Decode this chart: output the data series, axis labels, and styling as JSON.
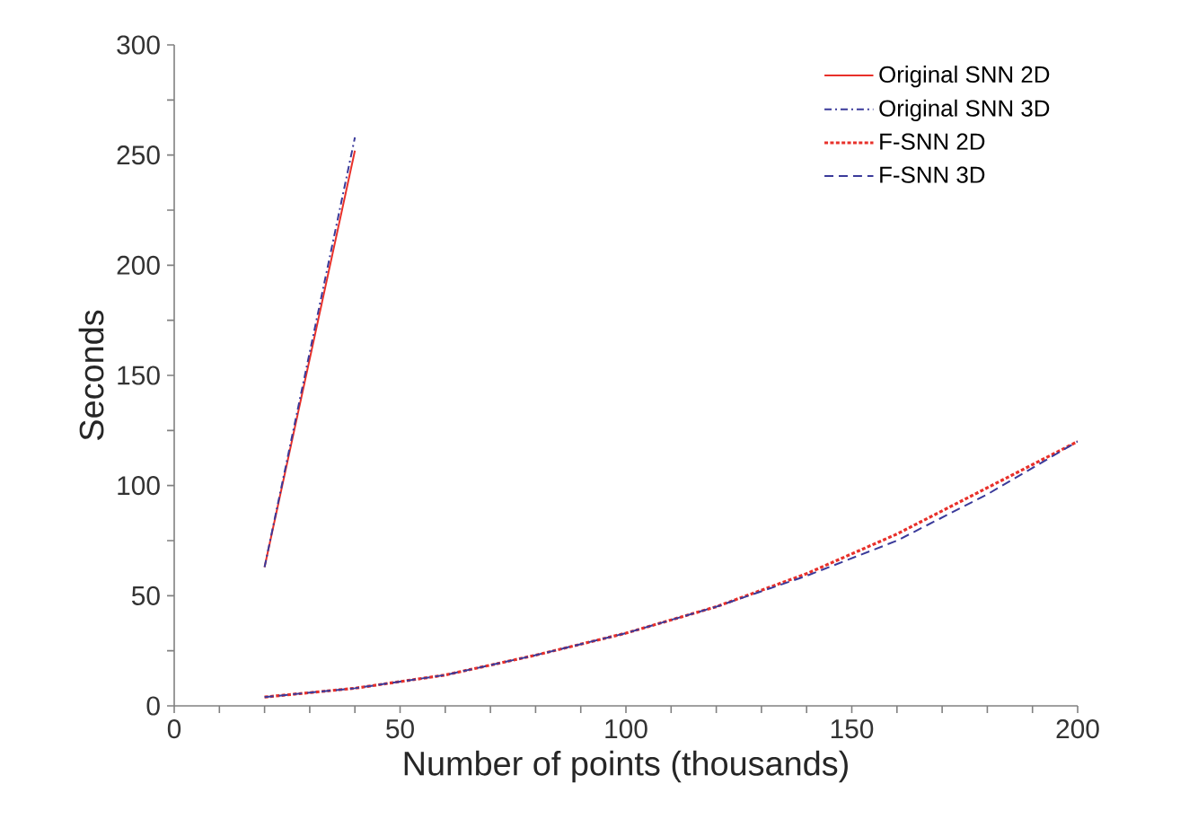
{
  "chart_data": {
    "type": "line",
    "xlabel": "Number of points (thousands)",
    "ylabel": "Seconds",
    "xlim": [
      0,
      200
    ],
    "ylim": [
      0,
      300
    ],
    "xticks": [
      0,
      {
        "value": 10,
        "label": null
      },
      {
        "value": 20,
        "label": null
      },
      {
        "value": 30,
        "label": null
      },
      {
        "value": 40,
        "label": null
      },
      50,
      {
        "value": 60,
        "label": null
      },
      {
        "value": 70,
        "label": null
      },
      {
        "value": 80,
        "label": null
      },
      {
        "value": 90,
        "label": null
      },
      100,
      {
        "value": 110,
        "label": null
      },
      {
        "value": 120,
        "label": null
      },
      {
        "value": 130,
        "label": null
      },
      {
        "value": 140,
        "label": null
      },
      150,
      {
        "value": 160,
        "label": null
      },
      {
        "value": 170,
        "label": null
      },
      {
        "value": 180,
        "label": null
      },
      {
        "value": 190,
        "label": null
      },
      200
    ],
    "yticks": [
      0,
      {
        "value": 25,
        "label": null
      },
      50,
      {
        "value": 75,
        "label": null
      },
      100,
      {
        "value": 125,
        "label": null
      },
      150,
      {
        "value": 175,
        "label": null
      },
      200,
      {
        "value": 225,
        "label": null
      },
      250,
      {
        "value": 275,
        "label": null
      },
      300
    ],
    "grid": false,
    "legend": "top right",
    "marker": "none",
    "series": [
      {
        "name": "Original SNN 2D",
        "color": "#e8302a",
        "line_style": "solid",
        "x": [
          20,
          40
        ],
        "values": [
          63,
          252
        ]
      },
      {
        "name": "Original SNN 3D",
        "color": "#3a3a9a",
        "line_style": "dashdot",
        "x": [
          20,
          40
        ],
        "values": [
          63,
          258
        ]
      },
      {
        "name": "F-SNN 2D",
        "color": "#e8302a",
        "line_style": "dotted",
        "x": [
          20,
          30,
          40,
          60,
          80,
          100,
          120,
          140,
          160,
          180,
          200
        ],
        "values": [
          4,
          6,
          8,
          14,
          23,
          33,
          45,
          60,
          78,
          99,
          120
        ]
      },
      {
        "name": "F-SNN 3D",
        "color": "#3a3a9a",
        "line_style": "dashed",
        "x": [
          20,
          30,
          40,
          60,
          80,
          100,
          120,
          140,
          160,
          180,
          200
        ],
        "values": [
          4,
          6,
          8,
          14,
          23,
          33,
          45,
          59,
          75,
          96,
          120
        ]
      }
    ]
  }
}
